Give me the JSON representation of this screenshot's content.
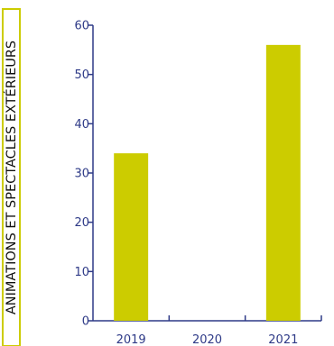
{
  "chart_data": {
    "type": "bar",
    "title": "ANIMATIONS ET SPECTACLES EXTÉRIEURS",
    "categories": [
      "2019",
      "2020",
      "2021"
    ],
    "values": [
      34,
      0,
      56
    ],
    "ylim": [
      0,
      60
    ],
    "yticks": [
      0,
      10,
      20,
      30,
      40,
      50,
      60
    ],
    "grid": false,
    "bar_color": "#cccc00",
    "axis_color": "#2e3a87",
    "label_box_color": "#cccc00"
  }
}
